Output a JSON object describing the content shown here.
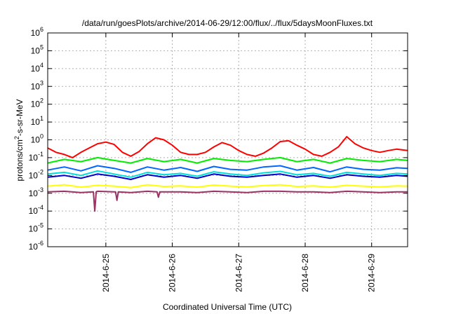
{
  "chart_data": {
    "type": "line",
    "title": "/data/run/goesPlots/archive/2014-06-29/12:00/flux/../flux/5daysMoonFluxes.txt",
    "xlabel": "Coordinated Universal Time (UTC)",
    "ylabel": "protons/cm2-s-sr-MeV",
    "ylabel_parts": {
      "pre": "protons/cm",
      "sup": "2",
      "post": "-s-sr-MeV"
    },
    "y_scale": "log",
    "ylim": [
      1e-06,
      1000000.0
    ],
    "yticks": [
      {
        "base": "10",
        "exp": "-6",
        "value": 1e-06
      },
      {
        "base": "10",
        "exp": "-5",
        "value": 1e-05
      },
      {
        "base": "10",
        "exp": "-4",
        "value": 0.0001
      },
      {
        "base": "10",
        "exp": "-3",
        "value": 0.001
      },
      {
        "base": "10",
        "exp": "-2",
        "value": 0.01
      },
      {
        "base": "10",
        "exp": "-1",
        "value": 0.1
      },
      {
        "base": "10",
        "exp": "0",
        "value": 1
      },
      {
        "base": "10",
        "exp": "1",
        "value": 10
      },
      {
        "base": "10",
        "exp": "2",
        "value": 100
      },
      {
        "base": "10",
        "exp": "3",
        "value": 1000
      },
      {
        "base": "10",
        "exp": "4",
        "value": 10000
      },
      {
        "base": "10",
        "exp": "5",
        "value": 100000
      },
      {
        "base": "10",
        "exp": "6",
        "value": 1000000
      }
    ],
    "xlim": [
      "2014-06-24 03:00",
      "2014-06-29 13:00"
    ],
    "xticks": [
      "2014-6-25",
      "2014-6-26",
      "2014-6-27",
      "2014-6-28",
      "2014-6-29"
    ],
    "grid": true,
    "legend": "none",
    "series": [
      {
        "color": "#ff0000",
        "x": [
          "2014-06-24 03:00",
          "2014-06-24 06:00",
          "2014-06-24 09:00",
          "2014-06-24 12:00",
          "2014-06-24 15:00",
          "2014-06-24 18:00",
          "2014-06-24 21:00",
          "2014-06-25 00:00",
          "2014-06-25 03:00",
          "2014-06-25 06:00",
          "2014-06-25 09:00",
          "2014-06-25 12:00",
          "2014-06-25 15:00",
          "2014-06-25 18:00",
          "2014-06-25 21:00",
          "2014-06-26 00:00",
          "2014-06-26 03:00",
          "2014-06-26 06:00",
          "2014-06-26 09:00",
          "2014-06-26 12:00",
          "2014-06-26 15:00",
          "2014-06-26 18:00",
          "2014-06-26 21:00",
          "2014-06-27 00:00",
          "2014-06-27 03:00",
          "2014-06-27 06:00",
          "2014-06-27 09:00",
          "2014-06-27 12:00",
          "2014-06-27 15:00",
          "2014-06-27 18:00",
          "2014-06-27 21:00",
          "2014-06-28 00:00",
          "2014-06-28 03:00",
          "2014-06-28 06:00",
          "2014-06-28 09:00",
          "2014-06-28 12:00",
          "2014-06-28 15:00",
          "2014-06-28 18:00",
          "2014-06-28 21:00",
          "2014-06-29 00:00",
          "2014-06-29 03:00",
          "2014-06-29 06:00",
          "2014-06-29 09:00",
          "2014-06-29 13:00"
        ],
        "values": [
          0.35,
          0.2,
          0.15,
          0.1,
          0.2,
          0.35,
          0.6,
          0.75,
          0.55,
          0.2,
          0.12,
          0.22,
          0.6,
          1.3,
          1.0,
          0.5,
          0.2,
          0.15,
          0.15,
          0.2,
          0.4,
          0.7,
          0.5,
          0.25,
          0.15,
          0.12,
          0.18,
          0.35,
          0.8,
          0.9,
          0.5,
          0.3,
          0.15,
          0.12,
          0.2,
          0.4,
          1.5,
          0.6,
          0.35,
          0.25,
          0.2,
          0.25,
          0.3,
          0.25
        ]
      },
      {
        "color": "#00ee00",
        "x": [
          "2014-06-24 03:00",
          "2014-06-24 09:00",
          "2014-06-24 15:00",
          "2014-06-24 21:00",
          "2014-06-25 03:00",
          "2014-06-25 09:00",
          "2014-06-25 15:00",
          "2014-06-25 21:00",
          "2014-06-26 03:00",
          "2014-06-26 09:00",
          "2014-06-26 15:00",
          "2014-06-26 21:00",
          "2014-06-27 03:00",
          "2014-06-27 09:00",
          "2014-06-27 15:00",
          "2014-06-27 21:00",
          "2014-06-28 03:00",
          "2014-06-28 09:00",
          "2014-06-28 15:00",
          "2014-06-28 21:00",
          "2014-06-29 03:00",
          "2014-06-29 09:00",
          "2014-06-29 13:00"
        ],
        "values": [
          0.05,
          0.08,
          0.06,
          0.1,
          0.07,
          0.05,
          0.09,
          0.06,
          0.08,
          0.05,
          0.09,
          0.07,
          0.06,
          0.08,
          0.1,
          0.06,
          0.08,
          0.05,
          0.09,
          0.07,
          0.06,
          0.08,
          0.07
        ]
      },
      {
        "color": "#00dddd",
        "x": [
          "2014-06-24 03:00",
          "2014-06-24 09:00",
          "2014-06-24 15:00",
          "2014-06-24 21:00",
          "2014-06-25 03:00",
          "2014-06-25 09:00",
          "2014-06-25 15:00",
          "2014-06-25 21:00",
          "2014-06-26 03:00",
          "2014-06-26 09:00",
          "2014-06-26 15:00",
          "2014-06-26 21:00",
          "2014-06-27 03:00",
          "2014-06-27 09:00",
          "2014-06-27 15:00",
          "2014-06-27 21:00",
          "2014-06-28 03:00",
          "2014-06-28 09:00",
          "2014-06-28 15:00",
          "2014-06-28 21:00",
          "2014-06-29 03:00",
          "2014-06-29 09:00",
          "2014-06-29 13:00"
        ],
        "values": [
          0.012,
          0.015,
          0.01,
          0.018,
          0.012,
          0.008,
          0.015,
          0.011,
          0.013,
          0.009,
          0.016,
          0.012,
          0.01,
          0.014,
          0.017,
          0.011,
          0.013,
          0.009,
          0.015,
          0.012,
          0.01,
          0.013,
          0.012
        ]
      },
      {
        "color": "#0066ff",
        "x": [
          "2014-06-24 03:00",
          "2014-06-24 09:00",
          "2014-06-24 15:00",
          "2014-06-24 21:00",
          "2014-06-25 03:00",
          "2014-06-25 09:00",
          "2014-06-25 15:00",
          "2014-06-25 21:00",
          "2014-06-26 03:00",
          "2014-06-26 09:00",
          "2014-06-26 15:00",
          "2014-06-26 21:00",
          "2014-06-27 03:00",
          "2014-06-27 09:00",
          "2014-06-27 15:00",
          "2014-06-27 21:00",
          "2014-06-28 03:00",
          "2014-06-28 09:00",
          "2014-06-28 15:00",
          "2014-06-28 21:00",
          "2014-06-29 03:00",
          "2014-06-29 09:00",
          "2014-06-29 13:00"
        ],
        "values": [
          0.02,
          0.03,
          0.018,
          0.035,
          0.025,
          0.015,
          0.03,
          0.02,
          0.028,
          0.017,
          0.032,
          0.022,
          0.02,
          0.03,
          0.035,
          0.02,
          0.028,
          0.016,
          0.03,
          0.022,
          0.02,
          0.027,
          0.025
        ]
      },
      {
        "color": "#0000cc",
        "x": [
          "2014-06-24 03:00",
          "2014-06-24 09:00",
          "2014-06-24 15:00",
          "2014-06-24 21:00",
          "2014-06-25 03:00",
          "2014-06-25 09:00",
          "2014-06-25 15:00",
          "2014-06-25 21:00",
          "2014-06-26 03:00",
          "2014-06-26 09:00",
          "2014-06-26 15:00",
          "2014-06-26 21:00",
          "2014-06-27 03:00",
          "2014-06-27 09:00",
          "2014-06-27 15:00",
          "2014-06-27 21:00",
          "2014-06-28 03:00",
          "2014-06-28 09:00",
          "2014-06-28 15:00",
          "2014-06-28 21:00",
          "2014-06-29 03:00",
          "2014-06-29 09:00",
          "2014-06-29 13:00"
        ],
        "values": [
          0.008,
          0.01,
          0.007,
          0.012,
          0.009,
          0.006,
          0.011,
          0.008,
          0.01,
          0.007,
          0.012,
          0.009,
          0.008,
          0.01,
          0.012,
          0.008,
          0.01,
          0.007,
          0.011,
          0.009,
          0.008,
          0.01,
          0.009
        ]
      },
      {
        "color": "#ffff00",
        "x": [
          "2014-06-24 03:00",
          "2014-06-24 09:00",
          "2014-06-24 15:00",
          "2014-06-24 21:00",
          "2014-06-25 03:00",
          "2014-06-25 09:00",
          "2014-06-25 15:00",
          "2014-06-25 21:00",
          "2014-06-26 03:00",
          "2014-06-26 09:00",
          "2014-06-26 15:00",
          "2014-06-26 21:00",
          "2014-06-27 03:00",
          "2014-06-27 09:00",
          "2014-06-27 15:00",
          "2014-06-27 21:00",
          "2014-06-28 03:00",
          "2014-06-28 09:00",
          "2014-06-28 15:00",
          "2014-06-28 21:00",
          "2014-06-29 03:00",
          "2014-06-29 09:00",
          "2014-06-29 13:00"
        ],
        "values": [
          0.0025,
          0.003,
          0.0022,
          0.0028,
          0.0025,
          0.0021,
          0.003,
          0.0024,
          0.0026,
          0.0022,
          0.0029,
          0.0025,
          0.0023,
          0.0027,
          0.003,
          0.0024,
          0.0026,
          0.0022,
          0.0028,
          0.0025,
          0.0023,
          0.0026,
          0.0025
        ]
      },
      {
        "color": "#993366",
        "x": [
          "2014-06-24 03:00",
          "2014-06-24 09:00",
          "2014-06-24 15:00",
          "2014-06-24 21:00",
          "2014-06-25 03:00",
          "2014-06-25 09:00",
          "2014-06-25 15:00",
          "2014-06-25 21:00",
          "2014-06-26 03:00",
          "2014-06-26 09:00",
          "2014-06-26 15:00",
          "2014-06-26 21:00",
          "2014-06-27 03:00",
          "2014-06-27 09:00",
          "2014-06-27 15:00",
          "2014-06-27 21:00",
          "2014-06-28 03:00",
          "2014-06-28 09:00",
          "2014-06-28 15:00",
          "2014-06-28 21:00",
          "2014-06-29 03:00",
          "2014-06-29 09:00",
          "2014-06-29 13:00"
        ],
        "values": [
          0.0012,
          0.0013,
          0.0011,
          0.0013,
          0.0012,
          0.0011,
          0.0013,
          0.0012,
          0.0012,
          0.0011,
          0.0013,
          0.0012,
          0.0011,
          0.0013,
          0.0013,
          0.0012,
          0.0012,
          0.0011,
          0.0013,
          0.0012,
          0.0011,
          0.0012,
          0.0012
        ],
        "dips": [
          {
            "x": "2014-06-24 20:00",
            "value": 0.0001
          },
          {
            "x": "2014-06-25 04:00",
            "value": 0.0004
          },
          {
            "x": "2014-06-25 19:00",
            "value": 0.0006
          }
        ]
      }
    ]
  }
}
